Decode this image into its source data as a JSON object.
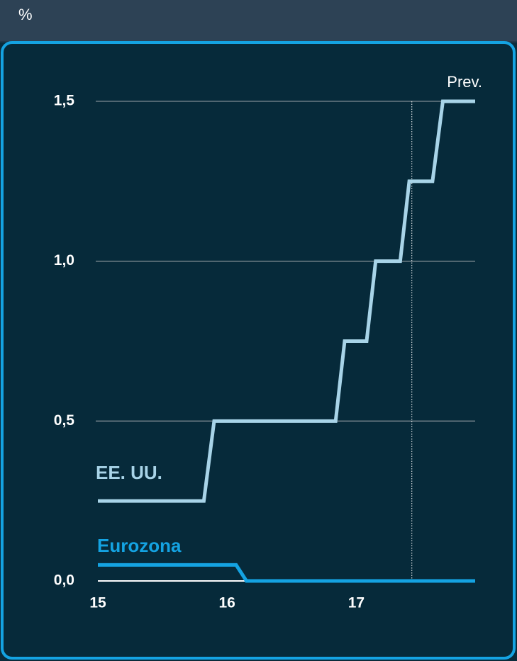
{
  "chart_data": {
    "type": "line",
    "y_label": "%",
    "series": [
      {
        "name": "EE. UU.",
        "color": "#a8d4e8",
        "x": [
          15,
          15.82,
          15.9,
          16.84,
          16.91,
          17.08,
          17.15,
          17.34,
          17.41,
          17.59,
          17.67,
          17.92
        ],
        "values": [
          0.25,
          0.25,
          0.5,
          0.5,
          0.75,
          0.75,
          1.0,
          1.0,
          1.25,
          1.25,
          1.5,
          1.5
        ]
      },
      {
        "name": "Eurozona",
        "color": "#14a3e2",
        "x": [
          15,
          16.07,
          16.15,
          17.92
        ],
        "values": [
          0.05,
          0.05,
          0,
          0
        ]
      }
    ],
    "annotation": {
      "text": "Prev.",
      "x": 17.43
    },
    "xlim": [
      15,
      17.92
    ],
    "xticks": [
      15,
      16,
      17
    ],
    "ylim": [
      0,
      1.5
    ],
    "yticks": [
      {
        "value": 0,
        "label": "0,0"
      },
      {
        "value": 0.5,
        "label": "0,5"
      },
      {
        "value": 1.0,
        "label": "1,0"
      },
      {
        "value": 1.5,
        "label": "1,5"
      }
    ],
    "grid": true
  }
}
